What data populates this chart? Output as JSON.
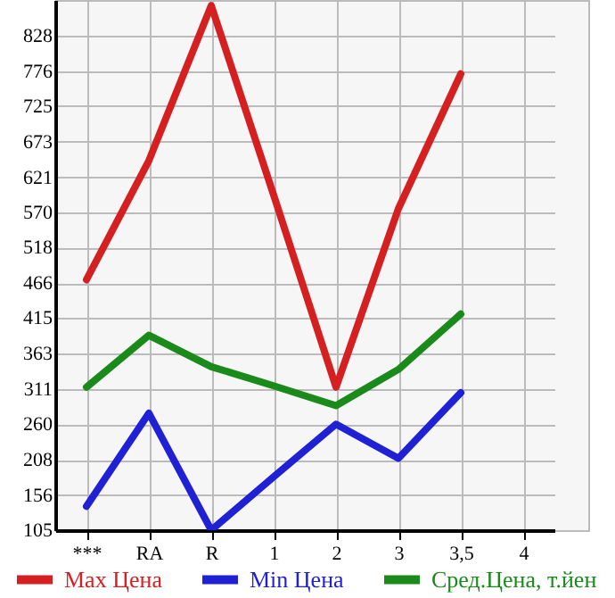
{
  "chart_data": {
    "type": "line",
    "categories": [
      "***",
      "RA",
      "R",
      "1",
      "2",
      "3",
      "3,5",
      "4"
    ],
    "series": [
      {
        "name": "Max Цена",
        "color": "#d42020",
        "values": [
          471,
          645,
          872,
          595,
          314,
          575,
          772,
          null
        ]
      },
      {
        "name": "Min Цена",
        "color": "#2020d4",
        "values": [
          140,
          276,
          105,
          183,
          260,
          210,
          306,
          null
        ]
      },
      {
        "name": "Сред.Цена, т.йен",
        "color": "#1a8a1a",
        "values": [
          314,
          390,
          344,
          316,
          287,
          340,
          421,
          null
        ]
      }
    ],
    "ylim": [
      105,
      880
    ],
    "yticks": [
      105,
      156,
      208,
      260,
      311,
      363,
      415,
      466,
      518,
      570,
      621,
      673,
      725,
      776,
      828
    ],
    "grid": true,
    "legend": "bottom",
    "line_style": "solid",
    "marker": "none"
  }
}
